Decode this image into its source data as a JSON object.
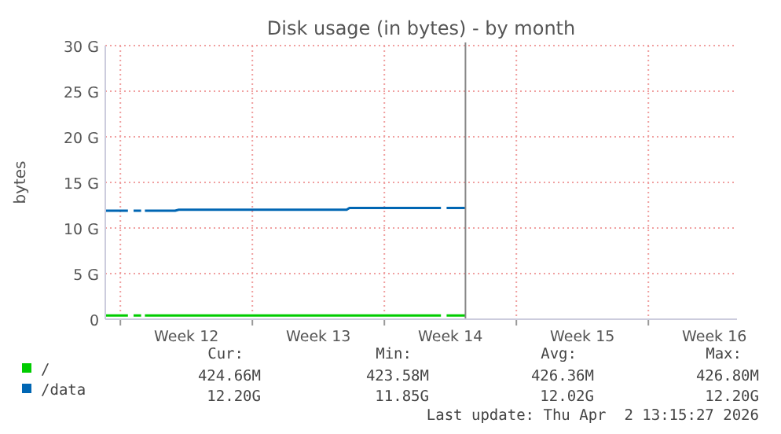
{
  "chart_data": {
    "type": "line",
    "title": "Disk usage (in bytes) - by month",
    "ylabel": "bytes",
    "xlim": [
      "2026-03-15T04:48",
      "2026-04-17T16:48"
    ],
    "xticks": [
      {
        "value": "2026-03-16",
        "label": null
      },
      {
        "value": "2026-03-19T12:00",
        "label": "Week 12"
      },
      {
        "value": "2026-03-23",
        "label": null
      },
      {
        "value": "2026-03-26T12:00",
        "label": "Week 13"
      },
      {
        "value": "2026-03-30",
        "label": null
      },
      {
        "value": "2026-04-02T12:00",
        "label": "Week 14"
      },
      {
        "value": "2026-04-06",
        "label": null
      },
      {
        "value": "2026-04-09T12:00",
        "label": "Week 15"
      },
      {
        "value": "2026-04-13",
        "label": null
      },
      {
        "value": "2026-04-16T12:00",
        "label": "Week 16"
      }
    ],
    "ylim": [
      0,
      30
    ],
    "yticks": [
      0,
      {
        "value": 5,
        "label": "5 G"
      },
      {
        "value": 10,
        "label": "10 G"
      },
      {
        "value": 15,
        "label": "15 G"
      },
      {
        "value": 20,
        "label": "20 G"
      },
      {
        "value": 25,
        "label": "25 G"
      },
      {
        "value": 30,
        "label": "30 G"
      }
    ],
    "grid": true,
    "legend": "bottom left",
    "marker": "none",
    "line_style": "solid",
    "ref_lines": [
      {
        "axis": "x",
        "value": "2026-04-03T07:12",
        "color": "#888888"
      }
    ],
    "x": [
      "2026-03-15T04:48",
      "2026-03-16T09:36",
      "2026-03-16T13:12",
      "2026-03-16T16:48",
      "2026-03-17T02:24",
      "2026-03-17T04:48",
      "2026-03-17T07:12",
      "2026-03-18T21:36",
      "2026-03-19T02:24",
      "2026-03-28T00:00",
      "2026-03-28T03:36",
      "2026-04-02T00:00",
      "2026-04-02T03:36",
      "2026-04-02T07:12",
      "2026-04-03T07:12"
    ],
    "series": [
      {
        "name": "/",
        "color": "#00cc00",
        "values": [
          0.4,
          0.4,
          null,
          0.4,
          0.4,
          null,
          0.4,
          0.4,
          0.4,
          0.4,
          0.4,
          0.4,
          null,
          0.4,
          0.4
        ]
      },
      {
        "name": "/data",
        "color": "#0066b3",
        "values": [
          11.9,
          11.9,
          null,
          11.9,
          11.9,
          null,
          11.9,
          11.9,
          12.0,
          12.0,
          12.2,
          12.2,
          null,
          12.2,
          12.2
        ]
      }
    ],
    "annotations": [
      "Cur:",
      "Min:",
      "Avg:",
      "Max:",
      "424.66M",
      "423.58M",
      "426.36M",
      "426.80M",
      "12.20G",
      "11.85G",
      "12.02G",
      "12.20G",
      "Last update: Thu Apr  2 13:15:27 2026"
    ]
  }
}
